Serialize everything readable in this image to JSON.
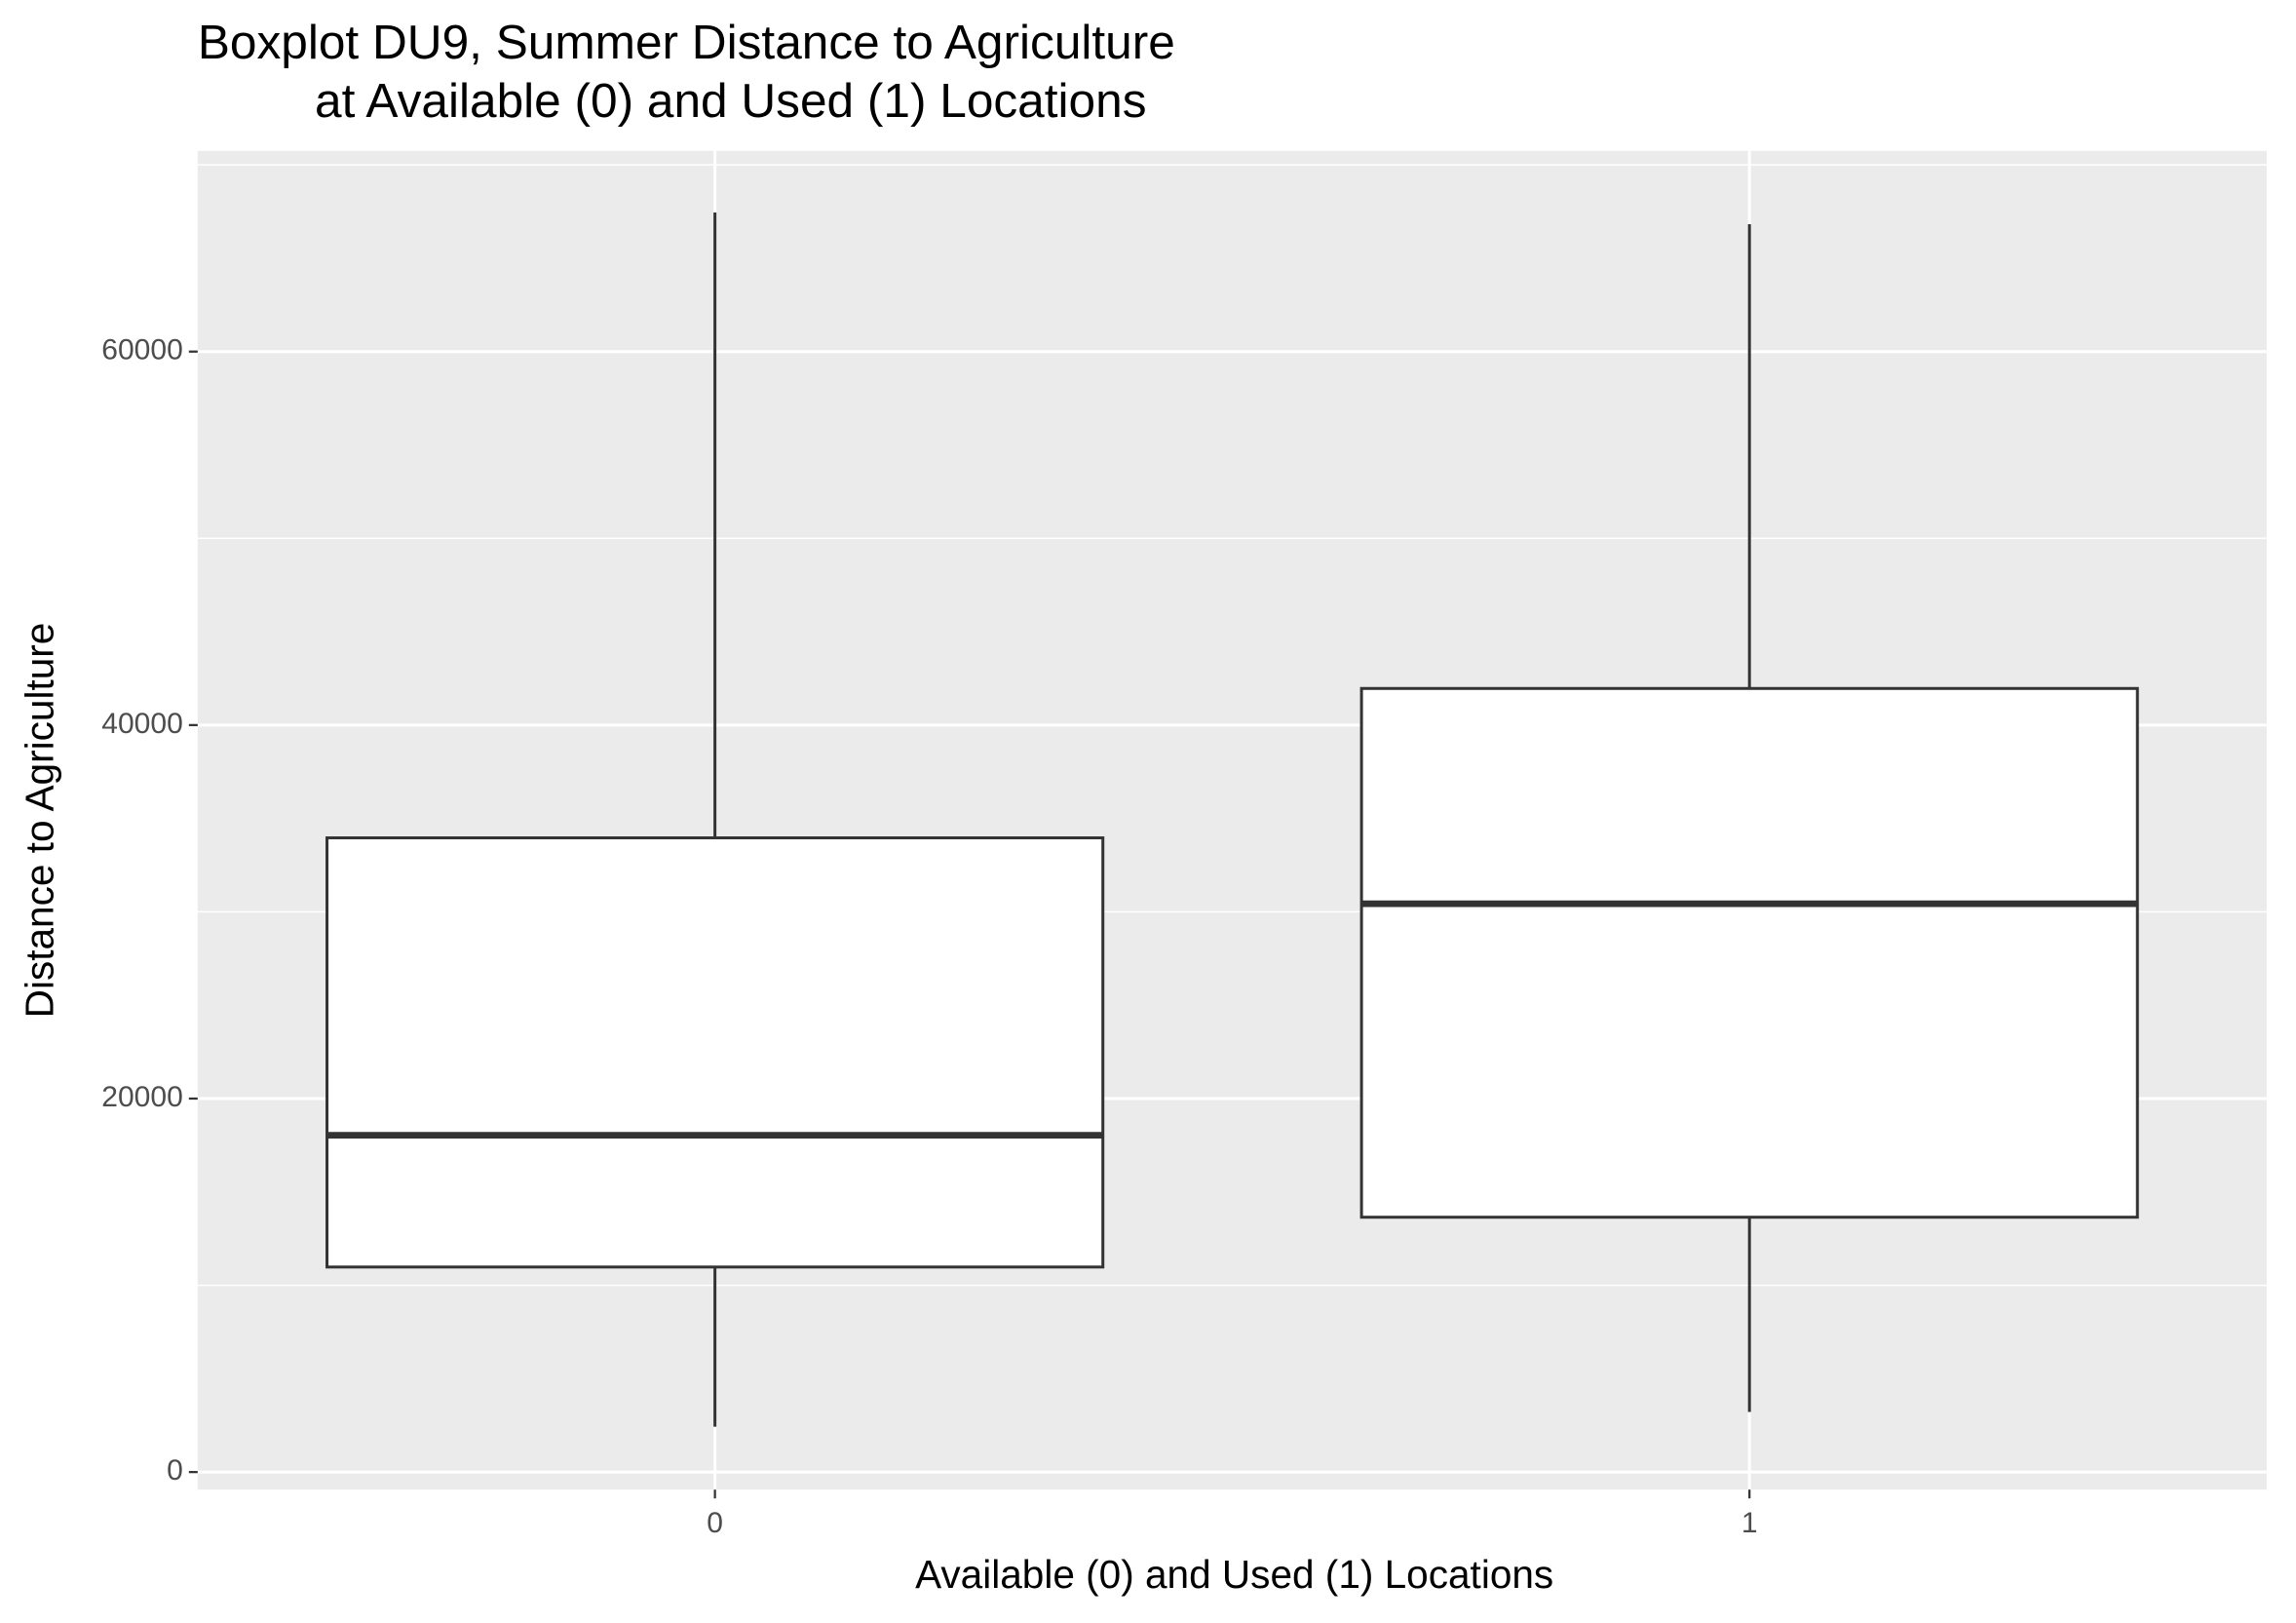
{
  "chart_data": {
    "type": "boxplot",
    "title": [
      "Boxplot DU9, Summer Distance to Agriculture",
      "at Available (0) and Used (1) Locations"
    ],
    "x_label": "Available (0) and Used (1) Locations",
    "y_label": "Distance to Agriculture",
    "categories": [
      "0",
      "1"
    ],
    "boxes": [
      {
        "low": 2431,
        "q1": 10980,
        "median": 18039,
        "q3": 33961,
        "high": 67451
      },
      {
        "low": 3216,
        "q1": 13647,
        "median": 30431,
        "q3": 41961,
        "high": 66824
      }
    ],
    "ylim": [
      -941,
      70745
    ],
    "yticks": [
      0,
      20000,
      40000,
      60000
    ],
    "minor_yticks": [
      10000,
      30000,
      50000,
      70000
    ],
    "grid": true,
    "panel_color": "#ebebeb",
    "box_fill": "#ffffff",
    "box_stroke": "#333333"
  }
}
